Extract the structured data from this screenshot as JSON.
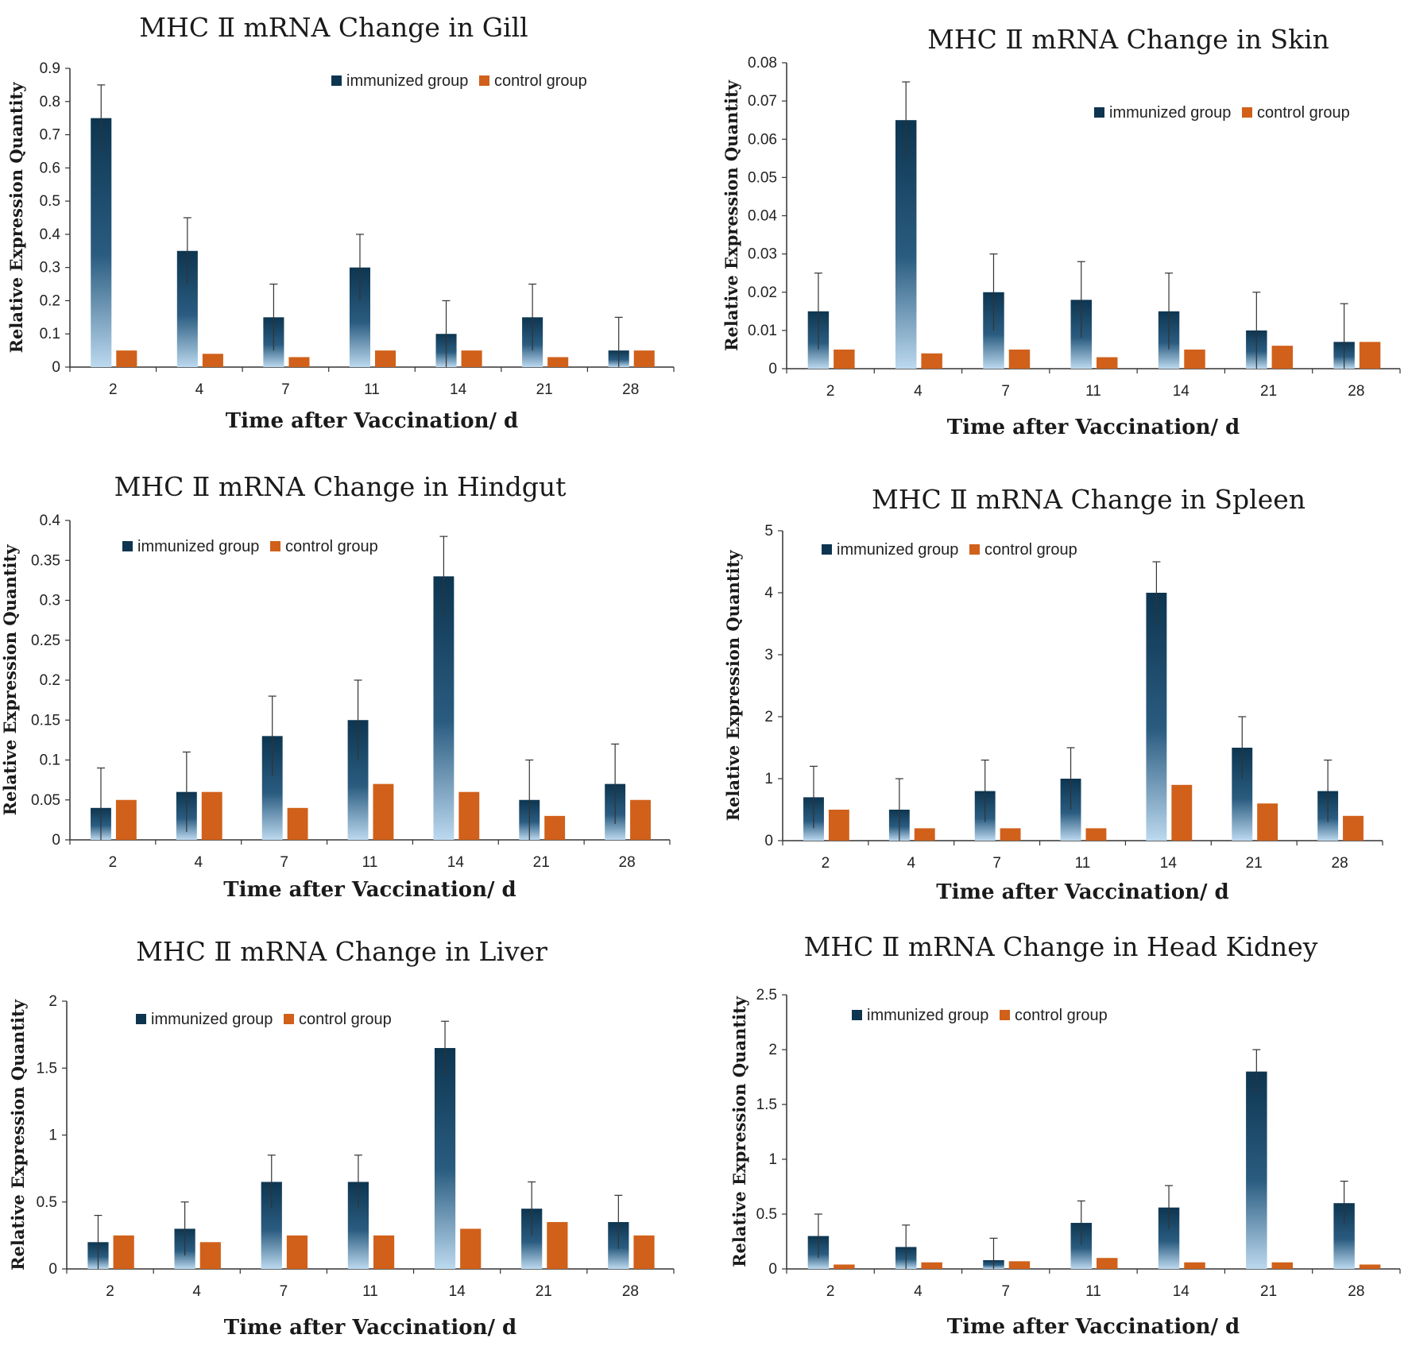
{
  "legend": {
    "immunized": "immunized group",
    "control": "control group"
  },
  "colors": {
    "immunized_top": "#0d3550",
    "immunized_bottom": "#bcd9ef",
    "control": "#d0601a",
    "axis": "#333333"
  },
  "chart_data": [
    {
      "type": "bar",
      "title": "MHC Ⅱ  mRNA  Change in Gill",
      "xlabel": "Time after  Vaccination/ d",
      "ylabel": "Relative Expression Quantity",
      "categories": [
        "2",
        "4",
        "7",
        "11",
        "14",
        "21",
        "28"
      ],
      "ylim": [
        0,
        0.9
      ],
      "yticks": [
        "0",
        "0.1",
        "0.2",
        "0.3",
        "0.4",
        "0.5",
        "0.6",
        "0.7",
        "0.8",
        "0.9"
      ],
      "legend_position": "top-right",
      "series": [
        {
          "name": "immunized group",
          "values": [
            0.75,
            0.35,
            0.15,
            0.3,
            0.1,
            0.15,
            0.05
          ],
          "errors": [
            0.1,
            0.1,
            0.1,
            0.1,
            0.1,
            0.1,
            0.1
          ]
        },
        {
          "name": "control group",
          "values": [
            0.05,
            0.04,
            0.03,
            0.05,
            0.05,
            0.03,
            0.05
          ]
        }
      ]
    },
    {
      "type": "bar",
      "title": "MHC Ⅱ  mRNA  Change in Skin",
      "xlabel": "Time after  Vaccination/ d",
      "ylabel": "Relative Expression Quantity",
      "categories": [
        "2",
        "4",
        "7",
        "11",
        "14",
        "21",
        "28"
      ],
      "ylim": [
        0,
        0.08
      ],
      "yticks": [
        "0",
        "0.01",
        "0.02",
        "0.03",
        "0.04",
        "0.05",
        "0.06",
        "0.07",
        "0.08"
      ],
      "legend_position": "top-right",
      "series": [
        {
          "name": "immunized group",
          "values": [
            0.015,
            0.065,
            0.02,
            0.018,
            0.015,
            0.01,
            0.007
          ],
          "errors": [
            0.01,
            0.01,
            0.01,
            0.01,
            0.01,
            0.01,
            0.01
          ]
        },
        {
          "name": "control group",
          "values": [
            0.005,
            0.004,
            0.005,
            0.003,
            0.005,
            0.006,
            0.007
          ]
        }
      ]
    },
    {
      "type": "bar",
      "title": "MHC Ⅱ  mRNA  Change in Hindgut",
      "xlabel": "Time after  Vaccination/ d",
      "ylabel": "Relative Expression Quantity",
      "categories": [
        "2",
        "4",
        "7",
        "11",
        "14",
        "21",
        "28"
      ],
      "ylim": [
        0,
        0.4
      ],
      "yticks": [
        "0",
        "0.05",
        "0.1",
        "0.15",
        "0.2",
        "0.25",
        "0.3",
        "0.35",
        "0.4"
      ],
      "legend_position": "top-left",
      "series": [
        {
          "name": "immunized group",
          "values": [
            0.04,
            0.06,
            0.13,
            0.15,
            0.33,
            0.05,
            0.07
          ],
          "errors": [
            0.05,
            0.05,
            0.05,
            0.05,
            0.05,
            0.05,
            0.05
          ]
        },
        {
          "name": "control group",
          "values": [
            0.05,
            0.06,
            0.04,
            0.07,
            0.06,
            0.03,
            0.05
          ]
        }
      ]
    },
    {
      "type": "bar",
      "title": "MHC Ⅱ  mRNA  Change in Spleen",
      "xlabel": "Time after  Vaccination/ d",
      "ylabel": "Relative Expression Quantity",
      "categories": [
        "2",
        "4",
        "7",
        "11",
        "14",
        "21",
        "28"
      ],
      "ylim": [
        0,
        5
      ],
      "yticks": [
        "0",
        "1",
        "2",
        "3",
        "4",
        "5"
      ],
      "legend_position": "top-left",
      "series": [
        {
          "name": "immunized group",
          "values": [
            0.7,
            0.5,
            0.8,
            1.0,
            4.0,
            1.5,
            0.8
          ],
          "errors": [
            0.5,
            0.5,
            0.5,
            0.5,
            0.5,
            0.5,
            0.5
          ]
        },
        {
          "name": "control group",
          "values": [
            0.5,
            0.2,
            0.2,
            0.2,
            0.9,
            0.6,
            0.4
          ]
        }
      ]
    },
    {
      "type": "bar",
      "title": "MHC Ⅱ  mRNA  Change in Liver",
      "xlabel": "Time after  Vaccination/ d",
      "ylabel": "Relative Expression Quantity",
      "categories": [
        "2",
        "4",
        "7",
        "11",
        "14",
        "21",
        "28"
      ],
      "ylim": [
        0,
        2
      ],
      "yticks": [
        "0",
        "0.5",
        "1",
        "1.5",
        "2"
      ],
      "legend_position": "top-left",
      "series": [
        {
          "name": "immunized group",
          "values": [
            0.2,
            0.3,
            0.65,
            0.65,
            1.65,
            0.45,
            0.35
          ],
          "errors": [
            0.2,
            0.2,
            0.2,
            0.2,
            0.2,
            0.2,
            0.2
          ]
        },
        {
          "name": "control group",
          "values": [
            0.25,
            0.2,
            0.25,
            0.25,
            0.3,
            0.35,
            0.25
          ]
        }
      ]
    },
    {
      "type": "bar",
      "title": "MHC Ⅱ  mRNA  Change in Head Kidney",
      "xlabel": "Time after  Vaccination/ d",
      "ylabel": "Relative Expression Quantity",
      "categories": [
        "2",
        "4",
        "7",
        "11",
        "14",
        "21",
        "28"
      ],
      "ylim": [
        0,
        2.5
      ],
      "yticks": [
        "0",
        "0.5",
        "1",
        "1.5",
        "2",
        "2.5"
      ],
      "legend_position": "top-left",
      "series": [
        {
          "name": "immunized group",
          "values": [
            0.3,
            0.2,
            0.08,
            0.42,
            0.56,
            1.8,
            0.6
          ],
          "errors": [
            0.2,
            0.2,
            0.2,
            0.2,
            0.2,
            0.2,
            0.2
          ]
        },
        {
          "name": "control group",
          "values": [
            0.04,
            0.06,
            0.07,
            0.1,
            0.06,
            0.06,
            0.04
          ]
        }
      ]
    }
  ]
}
